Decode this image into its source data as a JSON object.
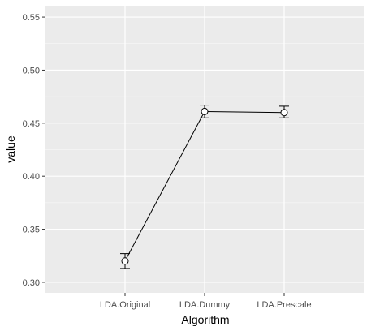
{
  "chart_data": {
    "type": "line",
    "xlabel": "Algorithm",
    "ylabel": "value",
    "categories": [
      "LDA.Original",
      "LDA.Dummy",
      "LDA.Prescale"
    ],
    "series": [
      {
        "values": [
          0.32,
          0.461,
          0.46
        ],
        "error_low": [
          0.313,
          0.455,
          0.455
        ],
        "error_high": [
          0.327,
          0.467,
          0.466
        ]
      }
    ],
    "ylim": [
      0.29,
      0.56
    ],
    "yticks": [
      0.3,
      0.35,
      0.4,
      0.45,
      0.5,
      0.55
    ],
    "ytick_labels": [
      "0.30",
      "0.35",
      "0.40",
      "0.45",
      "0.50",
      "0.55"
    ],
    "grid": true,
    "legend": "none",
    "colors": {
      "panel_background": "#ebebeb",
      "grid_major": "#ffffff",
      "line": "#000000",
      "point_fill": "#ffffff"
    }
  }
}
